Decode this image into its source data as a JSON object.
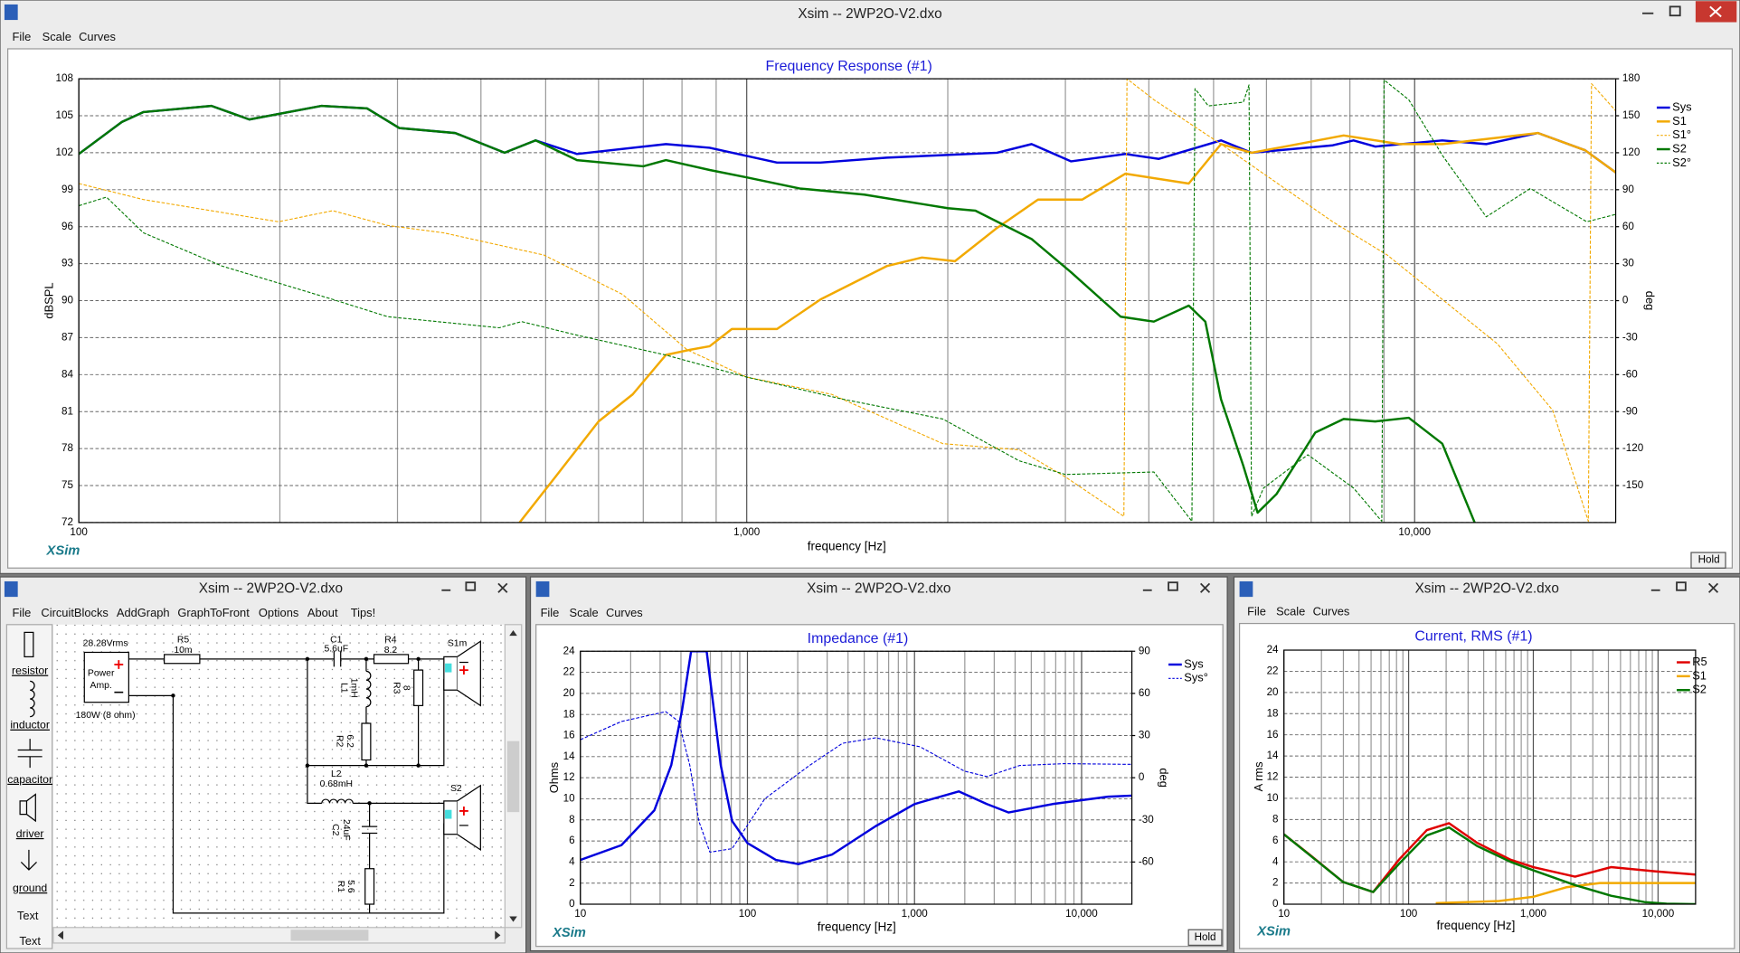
{
  "windows": [
    {
      "title": "Xsim -- 2WP2O-V2.dxo",
      "menu": [
        "File",
        "Scale",
        "Curves"
      ],
      "logo": "XSim",
      "hold": "Hold"
    },
    {
      "title": "Xsim -- 2WP2O-V2.dxo",
      "menu": [
        "File",
        "CircuitBlocks",
        "AddGraph",
        "GraphToFront",
        "Options",
        "About",
        "Tips!"
      ]
    },
    {
      "title": "Xsim -- 2WP2O-V2.dxo",
      "menu": [
        "File",
        "Scale",
        "Curves"
      ],
      "logo": "XSim",
      "hold": "Hold"
    },
    {
      "title": "Xsim -- 2WP2O-V2.dxo",
      "menu": [
        "File",
        "Scale",
        "Curves"
      ],
      "logo": "XSim"
    }
  ],
  "circuit": {
    "tools": [
      "resistor",
      "inductor",
      "capacitor",
      "driver",
      "ground",
      "Text",
      "Text"
    ],
    "source": {
      "voltage": "28.28Vrms",
      "name": [
        "Power",
        "Amp."
      ],
      "rating": "180W (8 ohm)"
    },
    "components": [
      {
        "name": "R5",
        "value": "10m"
      },
      {
        "name": "C1",
        "value": "5.6uF"
      },
      {
        "name": "R4",
        "value": "8.2"
      },
      {
        "name": "S1m"
      },
      {
        "name": "L1",
        "value": "1mH"
      },
      {
        "name": "R3",
        "value": "8"
      },
      {
        "name": "R2",
        "value": "6.2"
      },
      {
        "name": "L2",
        "value": "0.68mH"
      },
      {
        "name": "S2"
      },
      {
        "name": "C2",
        "value": "24uF"
      },
      {
        "name": "R1",
        "value": "5.6"
      }
    ]
  },
  "chart_data": [
    {
      "type": "line",
      "title": "Frequency Response (#1)",
      "xlabel": "frequency [Hz]",
      "ylabel": "dBSPL",
      "y2label": "deg",
      "log_x": true,
      "grid": true,
      "legend": "right",
      "xlim": [
        100,
        20000
      ],
      "xticks": [
        100,
        {
          "value": 1000,
          "label": "1,000"
        },
        {
          "value": 10000,
          "label": "10,000"
        }
      ],
      "xminor": [
        200,
        300,
        400,
        500,
        600,
        700,
        800,
        900,
        2000,
        3000,
        4000,
        5000,
        6000,
        7000,
        8000,
        9000
      ],
      "ylim": [
        72,
        108
      ],
      "yticks": [
        72,
        75,
        78,
        81,
        84,
        87,
        90,
        93,
        96,
        99,
        102,
        105,
        108
      ],
      "y2lim": [
        -180,
        180
      ],
      "y2ticks": [
        -150,
        -120,
        -90,
        -60,
        -30,
        0,
        30,
        60,
        90,
        120,
        150,
        180
      ],
      "series": [
        {
          "name": "Sys",
          "color": "#0000dd",
          "style": "solid",
          "x": [
            100,
            116,
            125,
            158,
            180,
            231,
            270,
            302,
            366,
            434,
            483,
            557,
            757,
            880,
            1110,
            1290,
            1620,
            2370,
            2670,
            3060,
            3690,
            4140,
            5130,
            5700,
            7540,
            8100,
            8730,
            11000,
            12800,
            15300,
            18000,
            20000
          ],
          "values": [
            101.9,
            104.5,
            105.3,
            105.8,
            104.7,
            105.8,
            105.6,
            104,
            103.6,
            102,
            103,
            101.9,
            102.7,
            102.4,
            101.2,
            101.2,
            101.6,
            102,
            102.7,
            101.3,
            101.9,
            101.5,
            103,
            102,
            102.6,
            103,
            102.5,
            103,
            102.7,
            103.6,
            102.2,
            100.4
          ]
        },
        {
          "name": "S1",
          "color": "#f2a900",
          "style": "solid",
          "x": [
            457,
            517,
            600,
            675,
            757,
            820,
            880,
            950,
            1110,
            1290,
            1620,
            1830,
            2050,
            2370,
            2730,
            3180,
            3690,
            4590,
            5130,
            5700,
            6400,
            7830,
            9500,
            11000,
            15300,
            18000,
            20000
          ],
          "values": [
            72,
            75.7,
            80.2,
            82.4,
            85.6,
            86,
            86.3,
            87.7,
            87.7,
            90.1,
            92.8,
            93.5,
            93.2,
            95.9,
            98.2,
            98.2,
            100.3,
            99.5,
            102.7,
            102,
            102.5,
            103.4,
            102.7,
            102.7,
            103.6,
            102.2,
            100.4
          ]
        },
        {
          "name": "S1°",
          "color": "#f2a900",
          "style": "dashed",
          "axis": "y2",
          "x": [
            100,
            125,
            199,
            240,
            290,
            352,
            497,
            652,
            815,
            1000,
            1340,
            1966,
            2560,
            3000,
            3670,
            3710,
            4070,
            5130,
            7540,
            9100,
            11000,
            13300,
            16100,
            18200,
            18400,
            20000
          ],
          "values": [
            95,
            82,
            64,
            73,
            61,
            55,
            37,
            5,
            -40,
            -62,
            -76,
            -116,
            -121,
            -143,
            -175,
            180,
            163,
            127,
            64,
            37,
            1,
            -35,
            -89,
            -179,
            176,
            154
          ]
        },
        {
          "name": "S2",
          "color": "#007800",
          "style": "solid",
          "x": [
            100,
            116,
            125,
            158,
            180,
            231,
            270,
            302,
            366,
            434,
            483,
            557,
            700,
            757,
            880,
            1000,
            1200,
            1500,
            2000,
            2200,
            2670,
            3060,
            3630,
            4070,
            4590,
            4860,
            5130,
            5540,
            5820,
            6210,
            7100,
            7830,
            8730,
            9800,
            11000,
            12300
          ],
          "values": [
            101.9,
            104.5,
            105.3,
            105.8,
            104.7,
            105.8,
            105.6,
            104,
            103.6,
            102,
            103,
            101.4,
            100.9,
            101.4,
            100.6,
            100,
            99.1,
            98.6,
            97.5,
            97.3,
            95,
            92.3,
            88.7,
            88.3,
            89.6,
            88.3,
            82,
            76.6,
            72.8,
            74.3,
            79.3,
            80.4,
            80.2,
            80.5,
            78.4,
            72
          ]
        },
        {
          "name": "S2°",
          "color": "#007800",
          "style": "dashed",
          "axis": "y2",
          "x": [
            100,
            110,
            125,
            164,
            240,
            290,
            426,
            460,
            557,
            755,
            1000,
            1395,
            1966,
            2560,
            3000,
            4070,
            4640,
            4690,
            4910,
            5540,
            5650,
            5700,
            5940,
            6920,
            8100,
            8930,
            9000,
            9800,
            11000,
            12800,
            14900,
            18100,
            20000
          ],
          "values": [
            77,
            84,
            55,
            28,
            1,
            -13,
            -22,
            -17,
            -28,
            -44,
            -62,
            -80,
            -96,
            -130,
            -141,
            -139,
            -179,
            172,
            158,
            161,
            175,
            -175,
            -152,
            -125,
            -152,
            -179,
            179,
            163,
            118,
            68,
            91,
            64,
            70
          ]
        }
      ]
    },
    {
      "type": "line",
      "title": "Impedance (#1)",
      "xlabel": "frequency [Hz]",
      "ylabel": "Ohms",
      "y2label": "deg",
      "log_x": true,
      "grid": true,
      "legend": "right",
      "xlim": [
        10,
        20000
      ],
      "xticks": [
        10,
        100,
        {
          "value": 1000,
          "label": "1,000"
        },
        {
          "value": 10000,
          "label": "10,000"
        }
      ],
      "xminor": [
        20,
        30,
        40,
        50,
        60,
        70,
        80,
        90,
        200,
        300,
        400,
        500,
        600,
        700,
        800,
        900,
        2000,
        3000,
        4000,
        5000,
        6000,
        7000,
        8000,
        9000
      ],
      "ylim": [
        0,
        24
      ],
      "yticks": [
        0,
        2,
        4,
        6,
        8,
        10,
        12,
        14,
        16,
        18,
        20,
        22,
        24
      ],
      "y2lim": [
        -90,
        90
      ],
      "y2ticks": [
        -60,
        -30,
        0,
        30,
        60,
        90
      ],
      "series": [
        {
          "name": "Sys",
          "color": "#0000dd",
          "style": "solid",
          "x": [
            10,
            17.6,
            27.7,
            35,
            40.6,
            46,
            57,
            69.2,
            80.9,
            100,
            148,
            202,
            320,
            585,
            1000,
            1840,
            2710,
            3660,
            6700,
            14400,
            20000
          ],
          "values": [
            4.2,
            5.6,
            8.9,
            13.2,
            18.4,
            24,
            24,
            13.2,
            7.9,
            5.8,
            4.2,
            3.8,
            4.7,
            7.4,
            9.5,
            10.7,
            9.5,
            8.7,
            9.5,
            10.2,
            10.3
          ]
        },
        {
          "name": "Sys°",
          "color": "#0000dd",
          "style": "dashed",
          "axis": "y2",
          "x": [
            10,
            17.6,
            32.4,
            38.8,
            45.2,
            51.2,
            59.6,
            80.9,
            127,
            235,
            371,
            585,
            1080,
            1990,
            2710,
            4260,
            7900,
            20000
          ],
          "values": [
            27,
            40,
            47,
            40,
            8.7,
            -31,
            -53,
            -50.5,
            -15,
            8.7,
            24.5,
            28.4,
            22,
            4.7,
            0.8,
            8.7,
            10,
            9.5
          ]
        }
      ]
    },
    {
      "type": "line",
      "title": "Current, RMS (#1)",
      "xlabel": "frequency [Hz]",
      "ylabel": "A rms",
      "log_x": true,
      "grid": true,
      "legend": "right",
      "xlim": [
        10,
        20000
      ],
      "xticks": [
        10,
        100,
        {
          "value": 1000,
          "label": "1,000"
        },
        {
          "value": 10000,
          "label": "10,000"
        }
      ],
      "xminor": [
        20,
        30,
        40,
        50,
        60,
        70,
        80,
        90,
        200,
        300,
        400,
        500,
        600,
        700,
        800,
        900,
        2000,
        3000,
        4000,
        5000,
        6000,
        7000,
        8000,
        9000
      ],
      "ylim": [
        0,
        24
      ],
      "yticks": [
        0,
        2,
        4,
        6,
        8,
        10,
        12,
        14,
        16,
        18,
        20,
        22,
        24
      ],
      "series": [
        {
          "name": "R5",
          "color": "#e00000",
          "style": "solid",
          "x": [
            10,
            16,
            29.8,
            52,
            83.6,
            140,
            211,
            354,
            657,
            1000,
            2160,
            4200,
            9600,
            20000
          ],
          "values": [
            6.6,
            4.7,
            2.1,
            1.15,
            4.2,
            7,
            7.65,
            5.8,
            4.2,
            3.5,
            2.6,
            3.5,
            3.1,
            2.8
          ]
        },
        {
          "name": "S1",
          "color": "#f2a900",
          "style": "solid",
          "x": [
            165,
            532,
            1000,
            1840,
            3420,
            20000
          ],
          "values": [
            0.1,
            0.3,
            0.7,
            1.6,
            2,
            2
          ]
        },
        {
          "name": "S2",
          "color": "#007800",
          "style": "solid",
          "x": [
            10,
            29.8,
            52,
            83.6,
            140,
            211,
            354,
            657,
            1000,
            2160,
            4200,
            7800,
            11700,
            20000
          ],
          "values": [
            6.6,
            2.1,
            1.15,
            3.8,
            6.5,
            7.25,
            5.5,
            4,
            3.2,
            1.8,
            0.8,
            0.2,
            0.05,
            0
          ]
        }
      ]
    }
  ]
}
